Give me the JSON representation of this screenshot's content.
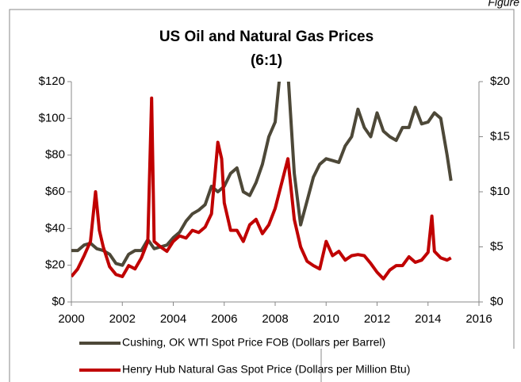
{
  "figure_label": "Figure",
  "chart_data": {
    "type": "line",
    "title": "US Oil and Natural Gas Prices",
    "subtitle": "(6:1)",
    "xlim": [
      2000,
      2016
    ],
    "xticks": [
      2000,
      2002,
      2004,
      2006,
      2008,
      2010,
      2012,
      2014,
      2016
    ],
    "ylim": [
      0,
      120
    ],
    "yticks": [
      {
        "value": 0,
        "label": "$0"
      },
      {
        "value": 20,
        "label": "$20"
      },
      {
        "value": 40,
        "label": "$40"
      },
      {
        "value": 60,
        "label": "$60"
      },
      {
        "value": 80,
        "label": "$80"
      },
      {
        "value": 100,
        "label": "$100"
      },
      {
        "value": 120,
        "label": "$120"
      }
    ],
    "y2lim": [
      0,
      20
    ],
    "y2ticks": [
      {
        "value": 0,
        "label": "$0"
      },
      {
        "value": 5,
        "label": "$5"
      },
      {
        "value": 10,
        "label": "$10"
      },
      {
        "value": 15,
        "label": "$15"
      },
      {
        "value": 20,
        "label": "$20"
      }
    ],
    "grid": false,
    "legend": "bottom",
    "series": [
      {
        "name": "Cushing, OK WTI Spot Price FOB (Dollars per Barrel)",
        "color": "#4d4838",
        "x": [
          2000,
          2000.25,
          2000.5,
          2000.75,
          2001,
          2001.25,
          2001.5,
          2001.75,
          2002,
          2002.25,
          2002.5,
          2002.75,
          2003,
          2003.25,
          2003.5,
          2003.75,
          2004,
          2004.25,
          2004.5,
          2004.75,
          2005,
          2005.25,
          2005.5,
          2005.75,
          2006,
          2006.25,
          2006.5,
          2006.75,
          2007,
          2007.25,
          2007.5,
          2007.75,
          2008,
          2008.25,
          2008.5,
          2008.75,
          2009,
          2009.25,
          2009.5,
          2009.75,
          2010,
          2010.25,
          2010.5,
          2010.75,
          2011,
          2011.25,
          2011.5,
          2011.75,
          2012,
          2012.25,
          2012.5,
          2012.75,
          2013,
          2013.25,
          2013.5,
          2013.75,
          2014,
          2014.25,
          2014.5,
          2014.75,
          2014.9
        ],
        "values": [
          28,
          28,
          31,
          32,
          29,
          28,
          26,
          21,
          20,
          26,
          28,
          28,
          34,
          29,
          30,
          31,
          35,
          38,
          44,
          48,
          50,
          53,
          63,
          60,
          63,
          70,
          73,
          60,
          58,
          65,
          75,
          90,
          98,
          133,
          125,
          70,
          42,
          55,
          68,
          75,
          78,
          77,
          76,
          85,
          90,
          105,
          95,
          90,
          103,
          93,
          90,
          88,
          95,
          95,
          106,
          97,
          98,
          103,
          100,
          80,
          66
        ]
      },
      {
        "name": "Henry Hub Natural Gas Spot Price (Dollars per Million Btu)",
        "color": "#c00000",
        "axis": "y2",
        "x": [
          2000,
          2000.25,
          2000.5,
          2000.75,
          2000.95,
          2001.1,
          2001.25,
          2001.5,
          2001.75,
          2002,
          2002.25,
          2002.5,
          2002.75,
          2003,
          2003.15,
          2003.25,
          2003.5,
          2003.75,
          2004,
          2004.25,
          2004.5,
          2004.75,
          2005,
          2005.25,
          2005.5,
          2005.75,
          2005.9,
          2006,
          2006.25,
          2006.5,
          2006.75,
          2007,
          2007.25,
          2007.5,
          2007.75,
          2008,
          2008.5,
          2008.75,
          2009,
          2009.25,
          2009.5,
          2009.75,
          2010,
          2010.25,
          2010.5,
          2010.75,
          2011,
          2011.25,
          2011.5,
          2011.75,
          2012,
          2012.25,
          2012.5,
          2012.75,
          2013,
          2013.25,
          2013.5,
          2013.75,
          2014,
          2014.15,
          2014.25,
          2014.5,
          2014.75,
          2014.9
        ],
        "values": [
          2.3,
          3.0,
          4.2,
          5.5,
          10.0,
          6.5,
          5,
          3.2,
          2.5,
          2.3,
          3.3,
          3.0,
          4.0,
          5.5,
          18.5,
          5.5,
          5.0,
          4.6,
          5.5,
          6.0,
          5.8,
          6.5,
          6.3,
          6.8,
          8.0,
          14.5,
          13,
          9.0,
          6.5,
          6.5,
          5.5,
          7.0,
          7.5,
          6.2,
          7.0,
          8.5,
          13.0,
          7.5,
          5.0,
          3.7,
          3.3,
          3.0,
          5.5,
          4.2,
          4.6,
          3.8,
          4.2,
          4.3,
          4.2,
          3.5,
          2.7,
          2.1,
          2.9,
          3.3,
          3.3,
          4.1,
          3.6,
          3.8,
          4.5,
          7.8,
          4.6,
          4.0,
          3.8,
          4.0
        ]
      }
    ]
  }
}
